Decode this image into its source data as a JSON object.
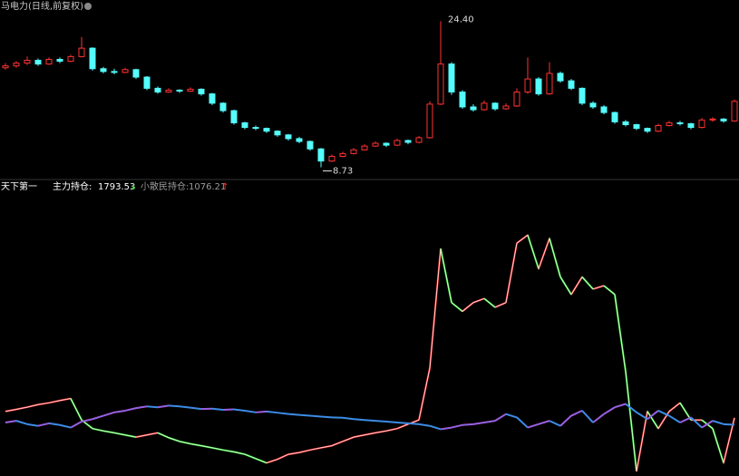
{
  "chart_data": [
    {
      "type": "candlestick",
      "title": "马电力(日线,前复权)",
      "up_color": "#ff3232",
      "down_color": "#54fcfc",
      "ylim": [
        8,
        25.5
      ],
      "high_label": "24.40",
      "low_label": "8.73",
      "candles": [
        [
          19.4,
          19.9,
          19.2,
          19.6
        ],
        [
          19.6,
          20.1,
          19.4,
          19.9
        ],
        [
          19.9,
          20.6,
          19.7,
          20.2
        ],
        [
          20.2,
          20.4,
          19.6,
          19.8
        ],
        [
          19.8,
          20.5,
          19.7,
          20.3
        ],
        [
          20.3,
          20.5,
          19.9,
          20.1
        ],
        [
          20.1,
          20.8,
          20.0,
          20.6
        ],
        [
          20.6,
          22.7,
          20.5,
          21.5
        ],
        [
          21.5,
          21.6,
          19.1,
          19.3
        ],
        [
          19.3,
          19.5,
          18.8,
          19.0
        ],
        [
          19.0,
          19.3,
          18.7,
          18.9
        ],
        [
          18.9,
          19.4,
          18.8,
          19.2
        ],
        [
          19.2,
          19.3,
          18.2,
          18.4
        ],
        [
          18.4,
          18.5,
          17.0,
          17.2
        ],
        [
          17.2,
          17.4,
          16.6,
          16.8
        ],
        [
          16.8,
          17.2,
          16.7,
          17.0
        ],
        [
          17.0,
          17.1,
          16.7,
          16.9
        ],
        [
          16.9,
          17.3,
          16.8,
          17.1
        ],
        [
          17.1,
          17.2,
          16.4,
          16.6
        ],
        [
          16.6,
          16.7,
          15.4,
          15.6
        ],
        [
          15.6,
          15.7,
          14.6,
          14.8
        ],
        [
          14.8,
          14.9,
          13.3,
          13.5
        ],
        [
          13.5,
          13.6,
          12.8,
          13.0
        ],
        [
          13.0,
          13.2,
          12.7,
          12.9
        ],
        [
          12.9,
          13.0,
          12.4,
          12.6
        ],
        [
          12.6,
          12.7,
          12.0,
          12.2
        ],
        [
          12.2,
          12.3,
          11.6,
          11.8
        ],
        [
          11.8,
          12.0,
          11.3,
          11.5
        ],
        [
          11.5,
          11.6,
          10.5,
          10.7
        ],
        [
          10.7,
          10.8,
          8.73,
          9.4
        ],
        [
          9.4,
          10.1,
          9.3,
          9.9
        ],
        [
          9.9,
          10.4,
          9.8,
          10.2
        ],
        [
          10.2,
          10.8,
          10.1,
          10.6
        ],
        [
          10.6,
          11.2,
          10.5,
          11.0
        ],
        [
          11.0,
          11.5,
          10.9,
          11.3
        ],
        [
          11.3,
          11.4,
          10.9,
          11.1
        ],
        [
          11.1,
          11.8,
          11.0,
          11.6
        ],
        [
          11.6,
          11.7,
          11.2,
          11.4
        ],
        [
          11.4,
          12.1,
          11.3,
          11.9
        ],
        [
          11.9,
          15.8,
          11.8,
          15.5
        ],
        [
          15.5,
          24.4,
          15.4,
          19.8
        ],
        [
          19.8,
          20.0,
          16.5,
          16.8
        ],
        [
          16.8,
          17.0,
          15.0,
          15.2
        ],
        [
          15.2,
          15.5,
          14.7,
          14.9
        ],
        [
          14.9,
          15.9,
          14.8,
          15.6
        ],
        [
          15.6,
          15.7,
          14.8,
          15.0
        ],
        [
          15.0,
          15.6,
          14.9,
          15.3
        ],
        [
          15.3,
          17.2,
          15.2,
          16.8
        ],
        [
          16.8,
          20.5,
          16.6,
          18.2
        ],
        [
          18.2,
          18.4,
          16.4,
          16.6
        ],
        [
          16.6,
          20.0,
          16.5,
          18.8
        ],
        [
          18.8,
          19.0,
          17.8,
          18.0
        ],
        [
          18.0,
          18.2,
          17.0,
          17.2
        ],
        [
          17.2,
          17.3,
          15.4,
          15.6
        ],
        [
          15.6,
          15.8,
          15.0,
          15.2
        ],
        [
          15.2,
          15.4,
          14.4,
          14.6
        ],
        [
          14.6,
          14.7,
          13.4,
          13.6
        ],
        [
          13.6,
          13.8,
          13.1,
          13.3
        ],
        [
          13.3,
          13.4,
          12.7,
          12.9
        ],
        [
          12.9,
          13.0,
          12.4,
          12.6
        ],
        [
          12.6,
          13.4,
          12.5,
          13.2
        ],
        [
          13.2,
          13.7,
          13.1,
          13.5
        ],
        [
          13.5,
          13.7,
          13.2,
          13.4
        ],
        [
          13.4,
          13.5,
          12.8,
          13.0
        ],
        [
          13.0,
          14.0,
          12.9,
          13.8
        ],
        [
          13.8,
          14.1,
          13.6,
          13.9
        ],
        [
          13.9,
          14.0,
          13.5,
          13.7
        ],
        [
          13.7,
          16.0,
          13.6,
          15.8
        ]
      ]
    },
    {
      "type": "line",
      "title": "天下第一",
      "ylim": [
        1000,
        5000
      ],
      "y2lim": [
        800,
        2400
      ],
      "series": [
        {
          "name": "主力持仓:",
          "color": "#ffffff",
          "up_color": "#ff2020",
          "down_color": "#20e020",
          "trend": "↓",
          "values": [
            1889,
            1920,
            1952,
            1990,
            2016,
            2050,
            2080,
            1762,
            1635,
            1600,
            1572,
            1540,
            1508,
            1540,
            1572,
            1500,
            1445,
            1410,
            1381,
            1350,
            1318,
            1290,
            1254,
            1190,
            1127,
            1180,
            1254,
            1280,
            1318,
            1350,
            1381,
            1445,
            1508,
            1540,
            1572,
            1600,
            1635,
            1700,
            1762,
            2530,
            4300,
            3500,
            3370,
            3500,
            3560,
            3430,
            3500,
            4380,
            4500,
            4000,
            4450,
            3880,
            3620,
            3880,
            3700,
            3750,
            3620,
            2480,
            1000,
            1889,
            1635,
            1889,
            2016,
            1762,
            1762,
            1635,
            1127,
            1793.53
          ]
        },
        {
          "name": "小散民持仓:",
          "color": "#3c8ce6",
          "up_color": "#e040e0",
          "down_color": "#3c8ce6",
          "trend": "↑",
          "axis": "y2",
          "values": [
            1090,
            1100,
            1080,
            1070,
            1085,
            1075,
            1060,
            1095,
            1110,
            1130,
            1150,
            1160,
            1175,
            1185,
            1180,
            1190,
            1185,
            1178,
            1170,
            1172,
            1165,
            1168,
            1160,
            1150,
            1155,
            1148,
            1140,
            1135,
            1130,
            1125,
            1120,
            1118,
            1110,
            1105,
            1100,
            1095,
            1090,
            1085,
            1080,
            1070,
            1050,
            1060,
            1075,
            1080,
            1090,
            1100,
            1140,
            1120,
            1060,
            1080,
            1100,
            1070,
            1130,
            1160,
            1090,
            1140,
            1180,
            1200,
            1150,
            1110,
            1160,
            1130,
            1090,
            1120,
            1060,
            1100,
            1080,
            1076.21
          ]
        }
      ]
    }
  ]
}
